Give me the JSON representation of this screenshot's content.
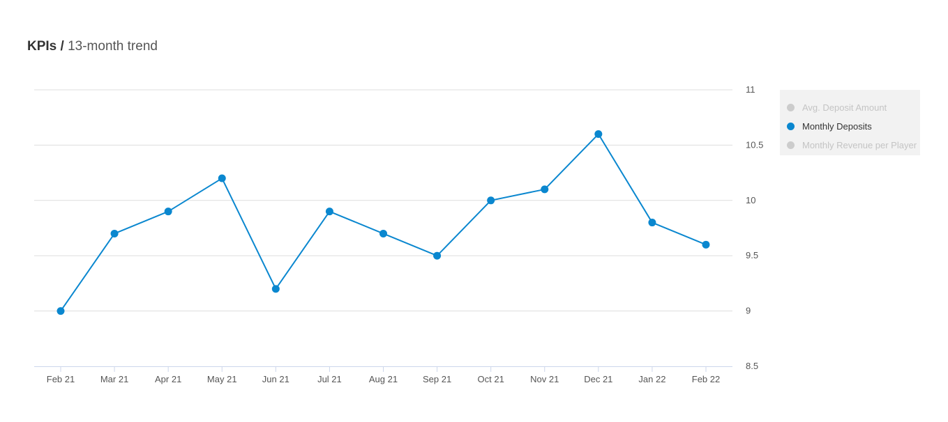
{
  "header": {
    "title_strong": "KPIs /",
    "title_rest": "13-month trend"
  },
  "legend": {
    "items": [
      {
        "label": "Avg. Deposit Amount",
        "active": false,
        "color": "#cccccc"
      },
      {
        "label": "Monthly Deposits",
        "active": true,
        "color": "#0a87cf"
      },
      {
        "label": "Monthly Revenue per Player",
        "active": false,
        "color": "#cccccc"
      }
    ]
  },
  "colors": {
    "series": "#0a87cf",
    "grid": "#dddddd",
    "axis": "#ccd6eb",
    "tick_label": "#555555"
  },
  "chart_data": {
    "type": "line",
    "title": "KPIs / 13-month trend",
    "categories": [
      "Feb 21",
      "Mar 21",
      "Apr 21",
      "May 21",
      "Jun 21",
      "Jul 21",
      "Aug 21",
      "Sep 21",
      "Oct 21",
      "Nov 21",
      "Dec 21",
      "Jan 22",
      "Feb 22"
    ],
    "series": [
      {
        "name": "Monthly Deposits",
        "values": [
          9.0,
          9.7,
          9.9,
          10.2,
          9.2,
          9.9,
          9.7,
          9.5,
          10.0,
          10.1,
          10.6,
          9.8,
          9.6
        ]
      }
    ],
    "yticks": [
      "8.5",
      "9",
      "9.5",
      "10",
      "10.5",
      "11"
    ],
    "ylim": [
      8.5,
      11
    ],
    "y_axis_side": "right",
    "grid": true,
    "legend_position": "right"
  }
}
